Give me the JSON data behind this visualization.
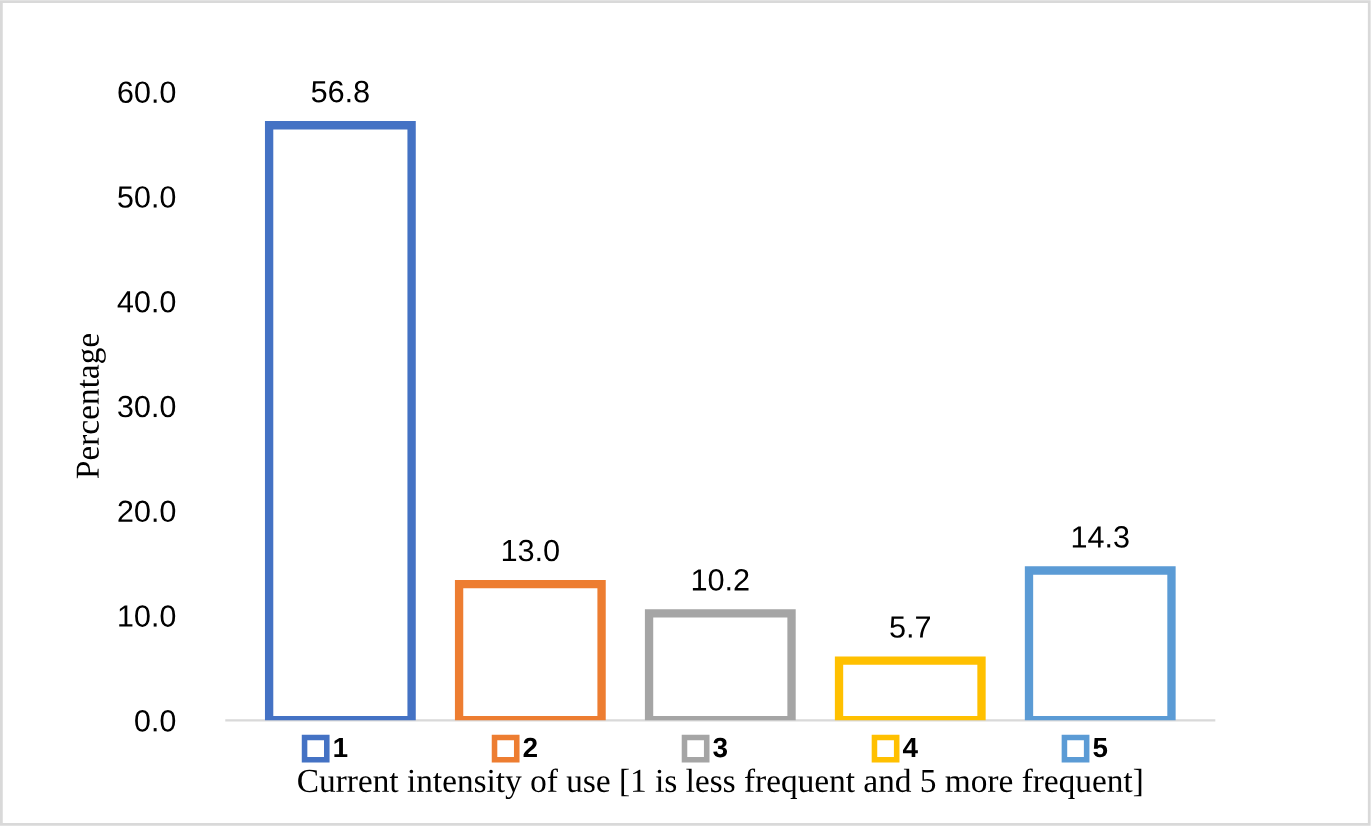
{
  "chart_data": {
    "type": "bar",
    "xlabel": "Current intensity of use [1 is less frequent and 5 more frequent]",
    "ylabel": "Percentage",
    "categories": [
      "1",
      "2",
      "3",
      "4",
      "5"
    ],
    "values": [
      56.8,
      13.0,
      10.2,
      5.7,
      14.3
    ],
    "value_labels": [
      "56.8",
      "13.0",
      "10.2",
      "5.7",
      "14.3"
    ],
    "colors": [
      "#4472c4",
      "#ed7d31",
      "#a5a5a5",
      "#ffc000",
      "#5b9bd5"
    ],
    "ylim": [
      0,
      60
    ],
    "yticks": [
      {
        "value": 0,
        "label": "0.0"
      },
      {
        "value": 10,
        "label": "10.0"
      },
      {
        "value": 20,
        "label": "20.0"
      },
      {
        "value": 30,
        "label": "30.0"
      },
      {
        "value": 40,
        "label": "40.0"
      },
      {
        "value": 50,
        "label": "50.0"
      },
      {
        "value": 60,
        "label": "60.0"
      }
    ],
    "grid": false
  }
}
